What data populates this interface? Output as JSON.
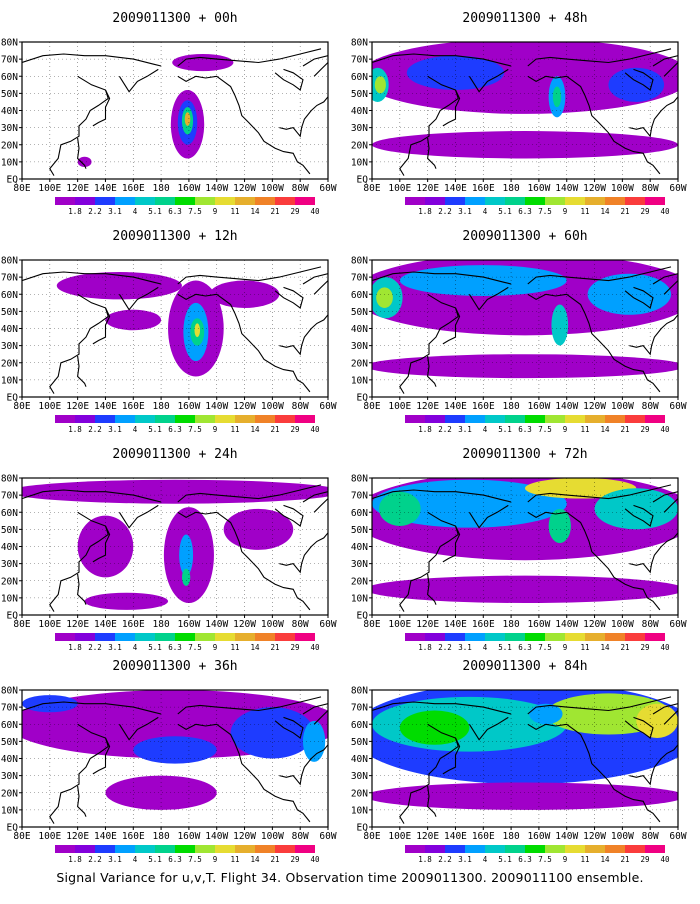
{
  "caption": "Signal Variance for u,v,T. Flight 34. Observation time 2009011300. 2009011100 ensemble.",
  "colors": {
    "scale": [
      "#a000c8",
      "#8200dc",
      "#1e3cff",
      "#00a0ff",
      "#00c8c8",
      "#00d28c",
      "#00dc00",
      "#a0e632",
      "#e6dc32",
      "#e6af2d",
      "#f08228",
      "#fa3c3c",
      "#f00082"
    ],
    "background": "#ffffff",
    "coast": "#000000",
    "grid": "#000000"
  },
  "chart_data": [
    {
      "type": "heatmap",
      "title": "2009011300 + 00h",
      "x_tick_labels": [
        "80E",
        "100E",
        "120E",
        "140E",
        "160E",
        "180",
        "160W",
        "140W",
        "120W",
        "100W",
        "80W",
        "60W"
      ],
      "y_tick_labels": [
        "EQ",
        "10N",
        "20N",
        "30N",
        "40N",
        "50N",
        "60N",
        "70N",
        "80N"
      ],
      "xlim": [
        80,
        300
      ],
      "ylim": [
        0,
        80
      ],
      "legend": [
        "1.8",
        "2.2",
        "3.1",
        "4",
        "5.1",
        "6.3",
        "7.5",
        "9",
        "11",
        "14",
        "21",
        "29",
        "40"
      ],
      "blobs": [
        {
          "lon": 199,
          "lat": 32,
          "rx": 12,
          "ry": 20,
          "level": 0
        },
        {
          "lon": 199,
          "lat": 33,
          "rx": 7,
          "ry": 13,
          "level": 2
        },
        {
          "lon": 199,
          "lat": 34,
          "rx": 4,
          "ry": 8,
          "level": 5
        },
        {
          "lon": 199,
          "lat": 35,
          "rx": 2,
          "ry": 4,
          "level": 9
        },
        {
          "lon": 210,
          "lat": 68,
          "rx": 22,
          "ry": 5,
          "level": 0
        },
        {
          "lon": 125,
          "lat": 10,
          "rx": 5,
          "ry": 3,
          "level": 0
        }
      ]
    },
    {
      "type": "heatmap",
      "title": "2009011300 + 48h",
      "x_tick_labels": [
        "80E",
        "100E",
        "120E",
        "140E",
        "160E",
        "180",
        "160W",
        "140W",
        "120W",
        "100W",
        "80W",
        "60W"
      ],
      "y_tick_labels": [
        "EQ",
        "10N",
        "20N",
        "30N",
        "40N",
        "50N",
        "60N",
        "70N",
        "80N"
      ],
      "xlim": [
        80,
        300
      ],
      "ylim": [
        0,
        80
      ],
      "legend": [
        "1.8",
        "2.2",
        "3.1",
        "4",
        "5.1",
        "6.3",
        "7.5",
        "9",
        "11",
        "14",
        "21",
        "29",
        "40"
      ],
      "blobs": [
        {
          "lon": 190,
          "lat": 60,
          "rx": 120,
          "ry": 22,
          "level": 0
        },
        {
          "lon": 190,
          "lat": 20,
          "rx": 110,
          "ry": 8,
          "level": 0
        },
        {
          "lon": 84,
          "lat": 55,
          "rx": 8,
          "ry": 10,
          "level": 4
        },
        {
          "lon": 86,
          "lat": 55,
          "rx": 4,
          "ry": 5,
          "level": 7
        },
        {
          "lon": 213,
          "lat": 48,
          "rx": 6,
          "ry": 12,
          "level": 3
        },
        {
          "lon": 213,
          "lat": 48,
          "rx": 3,
          "ry": 6,
          "level": 5
        },
        {
          "lon": 140,
          "lat": 62,
          "rx": 35,
          "ry": 10,
          "level": 2
        },
        {
          "lon": 270,
          "lat": 55,
          "rx": 20,
          "ry": 10,
          "level": 2
        }
      ]
    },
    {
      "type": "heatmap",
      "title": "2009011300 + 12h",
      "x_tick_labels": [
        "80E",
        "100E",
        "120E",
        "140E",
        "160E",
        "180",
        "160W",
        "140W",
        "120W",
        "100W",
        "80W",
        "60W"
      ],
      "y_tick_labels": [
        "EQ",
        "10N",
        "20N",
        "30N",
        "40N",
        "50N",
        "60N",
        "70N",
        "80N"
      ],
      "xlim": [
        80,
        300
      ],
      "ylim": [
        0,
        80
      ],
      "legend": [
        "1.8",
        "2.2",
        "3.1",
        "4",
        "5.1",
        "6.3",
        "7.5",
        "9",
        "11",
        "14",
        "21",
        "29",
        "40"
      ],
      "blobs": [
        {
          "lon": 205,
          "lat": 40,
          "rx": 20,
          "ry": 28,
          "level": 0
        },
        {
          "lon": 205,
          "lat": 38,
          "rx": 9,
          "ry": 17,
          "level": 3
        },
        {
          "lon": 206,
          "lat": 38,
          "rx": 5,
          "ry": 8,
          "level": 5
        },
        {
          "lon": 206,
          "lat": 39,
          "rx": 2,
          "ry": 4,
          "level": 8
        },
        {
          "lon": 150,
          "lat": 65,
          "rx": 45,
          "ry": 8,
          "level": 0
        },
        {
          "lon": 160,
          "lat": 45,
          "rx": 20,
          "ry": 6,
          "level": 0
        },
        {
          "lon": 240,
          "lat": 60,
          "rx": 25,
          "ry": 8,
          "level": 0
        }
      ]
    },
    {
      "type": "heatmap",
      "title": "2009011300 + 60h",
      "x_tick_labels": [
        "80E",
        "100E",
        "120E",
        "140E",
        "160E",
        "180",
        "160W",
        "140W",
        "120W",
        "100W",
        "80W",
        "60W"
      ],
      "y_tick_labels": [
        "EQ",
        "10N",
        "20N",
        "30N",
        "40N",
        "50N",
        "60N",
        "70N",
        "80N"
      ],
      "xlim": [
        80,
        300
      ],
      "ylim": [
        0,
        80
      ],
      "legend": [
        "1.8",
        "2.2",
        "3.1",
        "4",
        "5.1",
        "6.3",
        "7.5",
        "9",
        "11",
        "14",
        "21",
        "29",
        "40"
      ],
      "blobs": [
        {
          "lon": 190,
          "lat": 60,
          "rx": 125,
          "ry": 24,
          "level": 0
        },
        {
          "lon": 190,
          "lat": 18,
          "rx": 115,
          "ry": 7,
          "level": 0
        },
        {
          "lon": 90,
          "lat": 58,
          "rx": 12,
          "ry": 12,
          "level": 4
        },
        {
          "lon": 89,
          "lat": 58,
          "rx": 6,
          "ry": 6,
          "level": 7
        },
        {
          "lon": 160,
          "lat": 68,
          "rx": 60,
          "ry": 9,
          "level": 3
        },
        {
          "lon": 215,
          "lat": 42,
          "rx": 6,
          "ry": 12,
          "level": 4
        },
        {
          "lon": 265,
          "lat": 60,
          "rx": 30,
          "ry": 12,
          "level": 3
        }
      ]
    },
    {
      "type": "heatmap",
      "title": "2009011300 + 24h",
      "x_tick_labels": [
        "80E",
        "100E",
        "120E",
        "140E",
        "160E",
        "180",
        "160W",
        "140W",
        "120W",
        "100W",
        "80W",
        "60W"
      ],
      "y_tick_labels": [
        "EQ",
        "10N",
        "20N",
        "30N",
        "40N",
        "50N",
        "60N",
        "70N",
        "80N"
      ],
      "xlim": [
        80,
        300
      ],
      "ylim": [
        0,
        80
      ],
      "legend": [
        "1.8",
        "2.2",
        "3.1",
        "4",
        "5.1",
        "6.3",
        "7.5",
        "9",
        "11",
        "14",
        "21",
        "29",
        "40"
      ],
      "blobs": [
        {
          "lon": 190,
          "lat": 72,
          "rx": 120,
          "ry": 7,
          "level": 0
        },
        {
          "lon": 200,
          "lat": 35,
          "rx": 18,
          "ry": 28,
          "level": 0
        },
        {
          "lon": 198,
          "lat": 35,
          "rx": 5,
          "ry": 12,
          "level": 3
        },
        {
          "lon": 198,
          "lat": 22,
          "rx": 3,
          "ry": 5,
          "level": 5
        },
        {
          "lon": 140,
          "lat": 40,
          "rx": 20,
          "ry": 18,
          "level": 0
        },
        {
          "lon": 250,
          "lat": 50,
          "rx": 25,
          "ry": 12,
          "level": 0
        },
        {
          "lon": 155,
          "lat": 8,
          "rx": 30,
          "ry": 5,
          "level": 0
        }
      ]
    },
    {
      "type": "heatmap",
      "title": "2009011300 + 72h",
      "x_tick_labels": [
        "80E",
        "100E",
        "120E",
        "140E",
        "160E",
        "180",
        "160W",
        "140W",
        "120W",
        "100W",
        "80W",
        "60W"
      ],
      "y_tick_labels": [
        "EQ",
        "10N",
        "20N",
        "30N",
        "40N",
        "50N",
        "60N",
        "70N",
        "80N"
      ],
      "xlim": [
        80,
        300
      ],
      "ylim": [
        0,
        80
      ],
      "legend": [
        "1.8",
        "2.2",
        "3.1",
        "4",
        "5.1",
        "6.3",
        "7.5",
        "9",
        "11",
        "14",
        "21",
        "29",
        "40"
      ],
      "blobs": [
        {
          "lon": 190,
          "lat": 58,
          "rx": 125,
          "ry": 26,
          "level": 0
        },
        {
          "lon": 190,
          "lat": 15,
          "rx": 115,
          "ry": 8,
          "level": 0
        },
        {
          "lon": 150,
          "lat": 65,
          "rx": 70,
          "ry": 14,
          "level": 3
        },
        {
          "lon": 100,
          "lat": 62,
          "rx": 15,
          "ry": 10,
          "level": 5
        },
        {
          "lon": 230,
          "lat": 74,
          "rx": 40,
          "ry": 6,
          "level": 8
        },
        {
          "lon": 215,
          "lat": 52,
          "rx": 8,
          "ry": 10,
          "level": 5
        },
        {
          "lon": 270,
          "lat": 62,
          "rx": 30,
          "ry": 12,
          "level": 4
        }
      ]
    },
    {
      "type": "heatmap",
      "title": "2009011300 + 36h",
      "x_tick_labels": [
        "80E",
        "100E",
        "120E",
        "140E",
        "160E",
        "180",
        "160W",
        "140W",
        "120W",
        "100W",
        "80W",
        "60W"
      ],
      "y_tick_labels": [
        "EQ",
        "10N",
        "20N",
        "30N",
        "40N",
        "50N",
        "60N",
        "70N",
        "80N"
      ],
      "xlim": [
        80,
        300
      ],
      "ylim": [
        0,
        80
      ],
      "legend": [
        "1.8",
        "2.2",
        "3.1",
        "4",
        "5.1",
        "6.3",
        "7.5",
        "9",
        "11",
        "14",
        "21",
        "29",
        "40"
      ],
      "blobs": [
        {
          "lon": 190,
          "lat": 60,
          "rx": 120,
          "ry": 20,
          "level": 0
        },
        {
          "lon": 180,
          "lat": 20,
          "rx": 40,
          "ry": 10,
          "level": 0
        },
        {
          "lon": 260,
          "lat": 55,
          "rx": 30,
          "ry": 15,
          "level": 2
        },
        {
          "lon": 290,
          "lat": 50,
          "rx": 8,
          "ry": 12,
          "level": 3
        },
        {
          "lon": 190,
          "lat": 45,
          "rx": 30,
          "ry": 8,
          "level": 2
        },
        {
          "lon": 100,
          "lat": 72,
          "rx": 20,
          "ry": 5,
          "level": 2
        }
      ]
    },
    {
      "type": "heatmap",
      "title": "2009011300 + 84h",
      "x_tick_labels": [
        "80E",
        "100E",
        "120E",
        "140E",
        "160E",
        "180",
        "160W",
        "140W",
        "120W",
        "100W",
        "80W",
        "60W"
      ],
      "y_tick_labels": [
        "EQ",
        "10N",
        "20N",
        "30N",
        "40N",
        "50N",
        "60N",
        "70N",
        "80N"
      ],
      "xlim": [
        80,
        300
      ],
      "ylim": [
        0,
        80
      ],
      "legend": [
        "1.8",
        "2.2",
        "3.1",
        "4",
        "5.1",
        "6.3",
        "7.5",
        "9",
        "11",
        "14",
        "21",
        "29",
        "40"
      ],
      "blobs": [
        {
          "lon": 190,
          "lat": 55,
          "rx": 125,
          "ry": 30,
          "level": 2
        },
        {
          "lon": 190,
          "lat": 18,
          "rx": 115,
          "ry": 8,
          "level": 0
        },
        {
          "lon": 150,
          "lat": 60,
          "rx": 70,
          "ry": 16,
          "level": 4
        },
        {
          "lon": 125,
          "lat": 58,
          "rx": 25,
          "ry": 10,
          "level": 6
        },
        {
          "lon": 250,
          "lat": 66,
          "rx": 45,
          "ry": 12,
          "level": 7
        },
        {
          "lon": 285,
          "lat": 62,
          "rx": 15,
          "ry": 10,
          "level": 8
        },
        {
          "lon": 205,
          "lat": 66,
          "rx": 12,
          "ry": 6,
          "level": 3
        }
      ]
    }
  ]
}
